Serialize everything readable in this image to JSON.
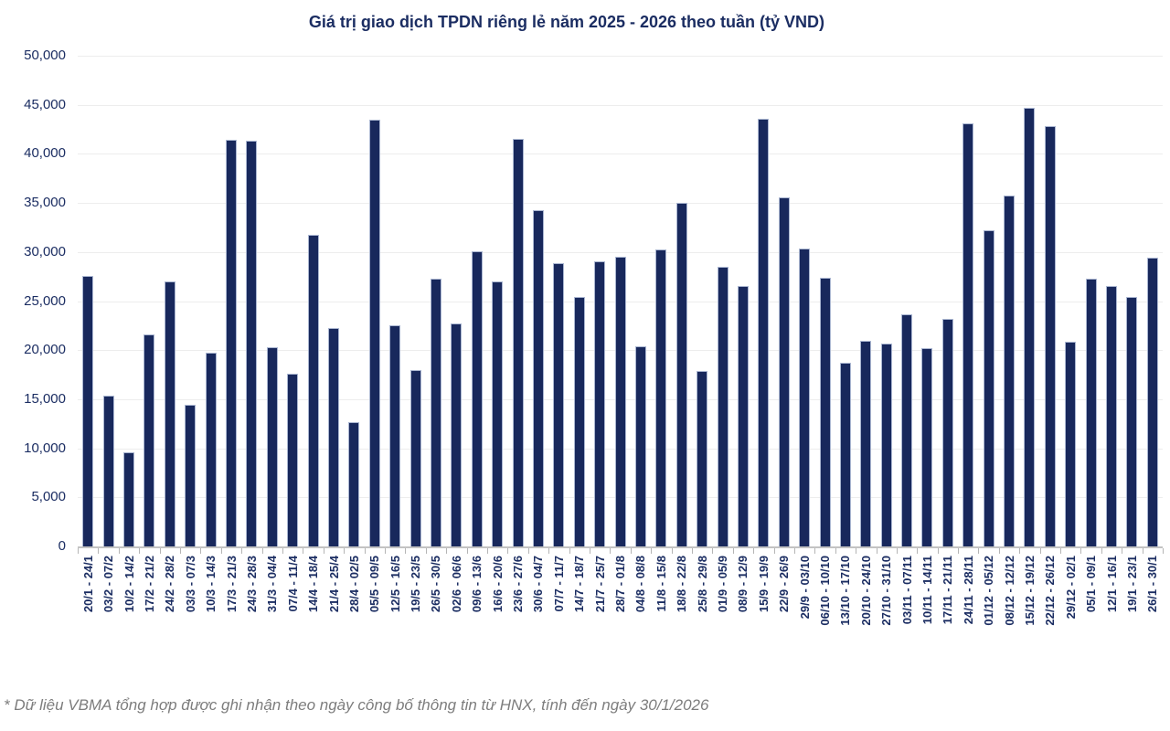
{
  "title": "Giá trị giao dịch TPDN riêng lẻ năm 2025 - 2026 theo tuần (tỷ VND)",
  "footnote": "* Dữ liệu VBMA tổng hợp được ghi nhận theo ngày công bố thông tin từ HNX, tính đến ngày 30/1/2026",
  "colors": {
    "bar": "#18285c",
    "bar_border": "#aab6d1",
    "axis_text": "#1b2d62",
    "gridline": "#ededed",
    "axis_line": "#c3c3c3",
    "footnote_text": "#7d7d7d",
    "background": "#ffffff"
  },
  "chart_data": {
    "type": "bar",
    "title": "Giá trị giao dịch TPDN riêng lẻ năm 2025 - 2026 theo tuần (tỷ VND)",
    "xlabel": "",
    "ylabel": "",
    "ylim": [
      0,
      50000
    ],
    "y_tick_step": 5000,
    "grid": true,
    "legend": "none",
    "categories": [
      "20/1 - 24/1",
      "03/2 - 07/2",
      "10/2 - 14/2",
      "17/2 - 21/2",
      "24/2 - 28/2",
      "03/3 - 07/3",
      "10/3 - 14/3",
      "17/3 - 21/3",
      "24/3 - 28/3",
      "31/3 - 04/4",
      "07/4 - 11/4",
      "14/4 - 18/4",
      "21/4 - 25/4",
      "28/4 - 02/5",
      "05/5 - 09/5",
      "12/5 - 16/5",
      "19/5 - 23/5",
      "26/5 - 30/5",
      "02/6 - 06/6",
      "09/6 - 13/6",
      "16/6 - 20/6",
      "23/6 - 27/6",
      "30/6 - 04/7",
      "07/7 - 11/7",
      "14/7 - 18/7",
      "21/7 - 25/7",
      "28/7 - 01/8",
      "04/8 - 08/8",
      "11/8 - 15/8",
      "18/8 - 22/8",
      "25/8 - 29/8",
      "01/9 - 05/9",
      "08/9 - 12/9",
      "15/9 - 19/9",
      "22/9 - 26/9",
      "29/9 - 03/10",
      "06/10 - 10/10",
      "13/10 - 17/10",
      "20/10 - 24/10",
      "27/10 - 31/10",
      "03/11 - 07/11",
      "10/11 - 14/11",
      "17/11 - 21/11",
      "24/11 - 28/11",
      "01/12 - 05/12",
      "08/12 - 12/12",
      "15/12 - 19/12",
      "22/12 - 26/12",
      "29/12 - 02/1",
      "05/1 - 09/1",
      "12/1 - 16/1",
      "19/1 - 23/1",
      "26/1 - 30/1"
    ],
    "values": [
      27600,
      15400,
      9600,
      21600,
      27000,
      14400,
      19700,
      41400,
      41300,
      20300,
      17600,
      31800,
      22300,
      12700,
      43500,
      22500,
      18000,
      27300,
      22700,
      30100,
      27000,
      41500,
      34300,
      28900,
      25400,
      29100,
      29500,
      20400,
      30300,
      35000,
      17900,
      28500,
      26500,
      43600,
      35600,
      30400,
      27400,
      18700,
      21000,
      20700,
      23700,
      20200,
      23200,
      43100,
      32200,
      35800,
      44700,
      42800,
      20900,
      27300,
      26500,
      25400,
      29400
    ]
  }
}
